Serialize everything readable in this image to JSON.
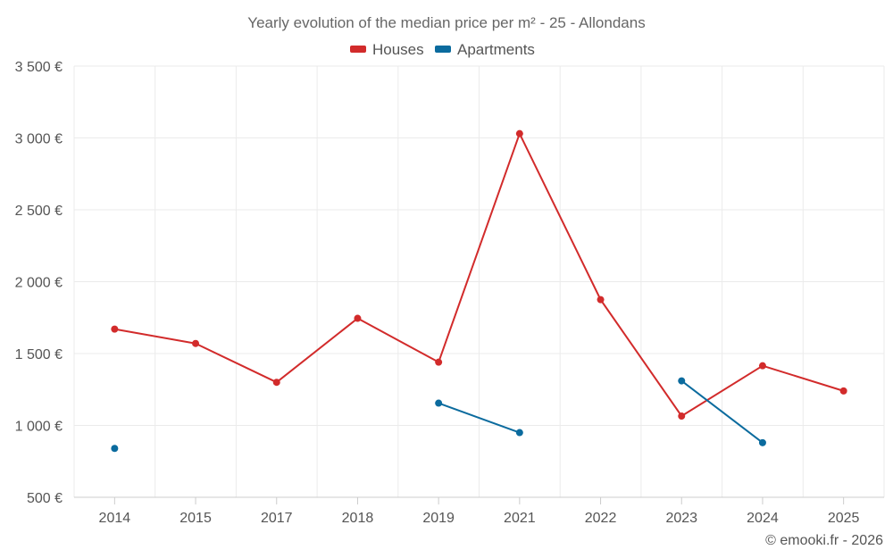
{
  "chart_data": {
    "type": "line",
    "title": "Yearly evolution of the median price per m² - 25 - Allondans",
    "categories": [
      "2014",
      "2015",
      "2017",
      "2018",
      "2019",
      "2021",
      "2022",
      "2023",
      "2024",
      "2025"
    ],
    "y_tick_labels": [
      "500 €",
      "1 000 €",
      "1 500 €",
      "2 000 €",
      "2 500 €",
      "3 000 €",
      "3 500 €"
    ],
    "y_ticks": [
      500,
      1000,
      1500,
      2000,
      2500,
      3000,
      3500
    ],
    "ylim": [
      500,
      3500
    ],
    "grid": true,
    "legend_position": "top-center",
    "series": [
      {
        "name": "Houses",
        "color": "#d22b2b",
        "values": [
          1670,
          1570,
          1300,
          1745,
          1440,
          3030,
          1875,
          1065,
          1415,
          1240
        ]
      },
      {
        "name": "Apartments",
        "color": "#0b6b9e",
        "values": [
          840,
          null,
          null,
          null,
          1155,
          950,
          null,
          1310,
          880,
          null
        ]
      }
    ],
    "credit": "© emooki.fr - 2026"
  }
}
